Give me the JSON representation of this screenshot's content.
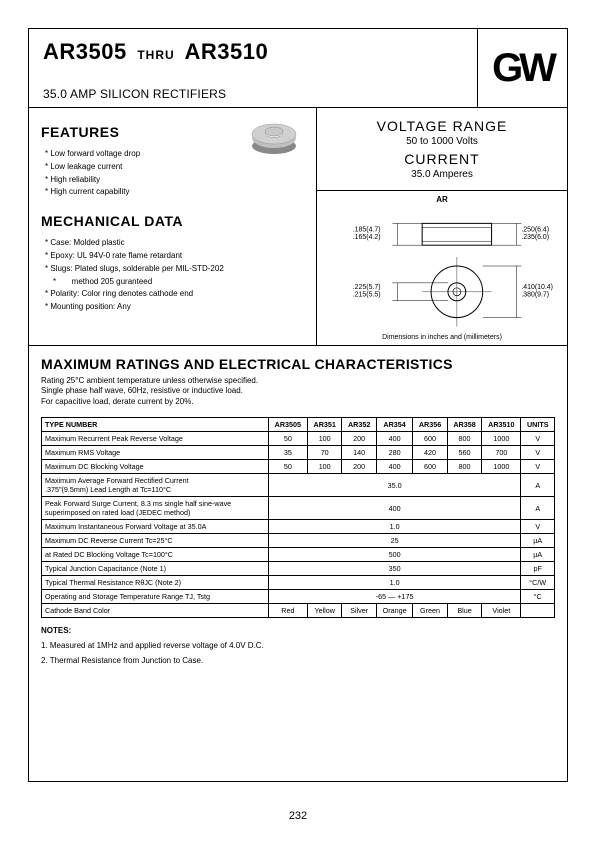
{
  "header": {
    "title_pre": "AR3505",
    "title_mid": "THRU",
    "title_post": "AR3510",
    "subtitle": "35.0 AMP SILICON RECTIFIERS",
    "logo": "GW"
  },
  "voltage_range": {
    "title": "VOLTAGE RANGE",
    "range": "50 to 1000 Volts",
    "current_title": "CURRENT",
    "current": "35.0 Amperes"
  },
  "diagram": {
    "ar": "AR",
    "dims_top_left1": ".185(4.7)",
    "dims_top_left2": ".165(4.2)",
    "dims_top_right1": ".250(6.4)",
    "dims_top_right2": ".235(6.0)",
    "dims_bot_left1": ".225(5.7)",
    "dims_bot_left2": ".215(5.5)",
    "dims_bot_right1": ".410(10.4)",
    "dims_bot_right2": ".380(9.7)",
    "note": "Dimensions in inches and (millimeters)"
  },
  "features_title": "FEATURES",
  "features": [
    "Low forward voltage drop",
    "Low leakage current",
    "High reliability",
    "High current capability"
  ],
  "mech_title": "MECHANICAL DATA",
  "mech": [
    "Case: Molded plastic",
    "Epoxy: UL 94V-0 rate flame retardant",
    "Slugs: Plated slugs, solderable per MIL-STD-202",
    "       method 205 guranteed",
    "Polarity: Color ring denotes cathode end",
    "Mounting position: Any"
  ],
  "ratings": {
    "title": "MAXIMUM RATINGS AND ELECTRICAL CHARACTERISTICS",
    "note1": "Rating 25°C ambient temperature unless otherwise specified.",
    "note2": "Single phase half wave, 60Hz, resistive or inductive load.",
    "note3": "For capacitive load, derate current by 20%.",
    "type_label": "TYPE NUMBER",
    "units_label": "UNITS",
    "columns": [
      "AR3505",
      "AR351",
      "AR352",
      "AR354",
      "AR356",
      "AR358",
      "AR3510"
    ],
    "rows": [
      {
        "label": "Maximum Recurrent Peak Reverse Voltage",
        "vals": [
          "50",
          "100",
          "200",
          "400",
          "600",
          "800",
          "1000"
        ],
        "unit": "V",
        "span": false
      },
      {
        "label": "Maximum RMS Voltage",
        "vals": [
          "35",
          "70",
          "140",
          "280",
          "420",
          "560",
          "700"
        ],
        "unit": "V",
        "span": false
      },
      {
        "label": "Maximum DC Blocking Voltage",
        "vals": [
          "50",
          "100",
          "200",
          "400",
          "600",
          "800",
          "1000"
        ],
        "unit": "V",
        "span": false
      },
      {
        "label": "Maximum Average Forward Rectified Current\n .375\"(9.5mm) Lead Length at Tc=110°C",
        "vals": [
          "35.0"
        ],
        "unit": "A",
        "span": true
      },
      {
        "label": "Peak Forward Surge Current, 8.3 ms single half sine-wave\n superimposed on rated load (JEDEC method)",
        "vals": [
          "400"
        ],
        "unit": "A",
        "span": true
      },
      {
        "label": "Maximum Instantaneous Forward Voltage at 35.0A",
        "vals": [
          "1.0"
        ],
        "unit": "V",
        "span": true
      },
      {
        "label": "Maximum DC Reverse Current           Tc=25°C",
        "vals": [
          "25"
        ],
        "unit": "µA",
        "span": true
      },
      {
        "label": "at Rated DC Blocking Voltage          Tc=100°C",
        "vals": [
          "500"
        ],
        "unit": "µA",
        "span": true
      },
      {
        "label": "Typical Junction Capacitance (Note 1)",
        "vals": [
          "350"
        ],
        "unit": "pF",
        "span": true
      },
      {
        "label": "Typical Thermal Resistance RθJC (Note 2)",
        "vals": [
          "1.0"
        ],
        "unit": "°C/W",
        "span": true
      },
      {
        "label": "Operating and Storage Temperature Range TJ, Tstg",
        "vals": [
          "-65 — +175"
        ],
        "unit": "°C",
        "span": true
      },
      {
        "label": "Cathode Band Color",
        "vals": [
          "Red",
          "Yellow",
          "Silver",
          "Orange",
          "Green",
          "Blue",
          "Violet"
        ],
        "unit": "",
        "span": false
      }
    ],
    "notes_header": "NOTES:",
    "notes": [
      "1. Measured at 1MHz and applied reverse voltage of 4.0V D.C.",
      "2. Thermal Resistance from Junction to Case."
    ]
  },
  "page_number": "232",
  "colors": {
    "component_body": "#bfbfbf",
    "component_cap": "#d0d0d0",
    "component_shadow": "#888888"
  }
}
